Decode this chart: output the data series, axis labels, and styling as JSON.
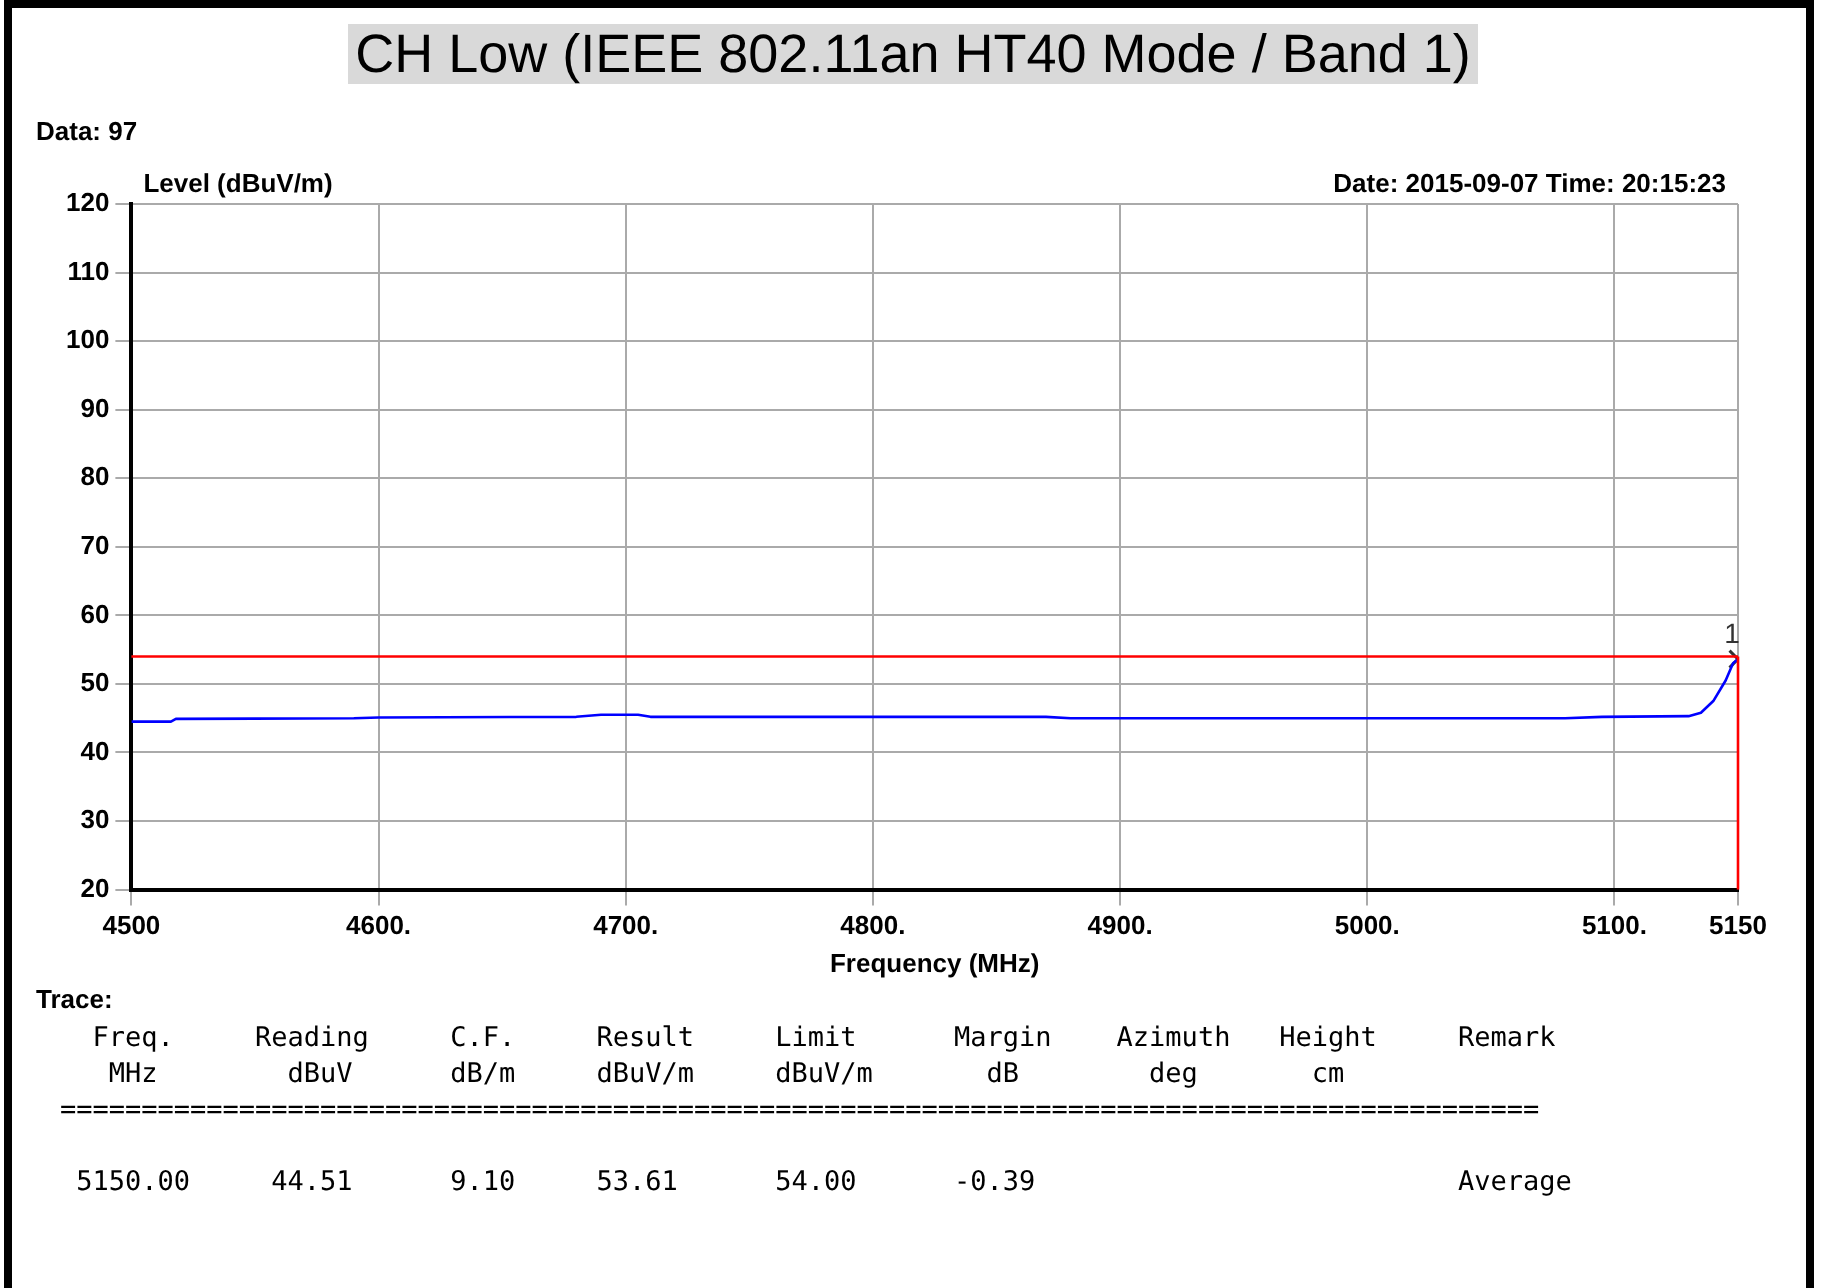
{
  "chart_data": {
    "type": "line",
    "title": "CH Low (IEEE 802.11an HT40 Mode / Band 1)",
    "xlabel": "Frequency (MHz)",
    "ylabel": "Level (dBuV/m)",
    "xlim": [
      4500,
      5150
    ],
    "xticks": [
      4500,
      {
        "value": 4600,
        "label": "4600."
      },
      {
        "value": 4700,
        "label": "4700."
      },
      {
        "value": 4800,
        "label": "4800."
      },
      {
        "value": 4900,
        "label": "4900."
      },
      {
        "value": 5000,
        "label": "5000."
      },
      {
        "value": 5100,
        "label": "5100."
      },
      5150
    ],
    "ylim": [
      20,
      120
    ],
    "yticks": [
      20,
      30,
      40,
      50,
      60,
      70,
      80,
      90,
      100,
      110,
      120
    ],
    "grid": true,
    "series": [
      {
        "color": "#0000ff",
        "x": [
          4500,
          4516,
          4518,
          4590,
          4600,
          4680,
          4690,
          4705,
          4710,
          4750,
          4870,
          4880,
          5000,
          5080,
          5095,
          5130,
          5135,
          5140,
          5145,
          5148,
          5150
        ],
        "values": [
          44.5,
          44.5,
          44.9,
          45.0,
          45.1,
          45.2,
          45.5,
          45.5,
          45.2,
          45.2,
          45.2,
          45.0,
          45.0,
          45.0,
          45.2,
          45.3,
          45.8,
          47.5,
          50.5,
          53.0,
          53.61
        ]
      },
      {
        "type": "scatter",
        "color": "#333333",
        "marker": "cross",
        "x": [
          5150
        ],
        "values": [
          53.61
        ]
      }
    ],
    "ref_lines": [
      {
        "axis": "y",
        "value": 54,
        "color": "#ff0000"
      },
      {
        "axis": "x",
        "value": 5150,
        "color": "#ff0000"
      }
    ],
    "annotations": [
      {
        "text": "1",
        "x": 5150,
        "y": 53.61
      },
      "Data: 97",
      "Date: 2015-09-07  Time: 20:15:23",
      "Trace:",
      "  Freq.     Reading     C.F.     Result     Limit      Margin    Azimuth   Height     Remark",
      "   MHz        dBuV      dB/m     dBuV/m     dBuV/m       dB        deg       cm",
      "===========================================================================================",
      " 5150.00     44.51      9.10     53.61      54.00      -0.39                          Average"
    ]
  }
}
